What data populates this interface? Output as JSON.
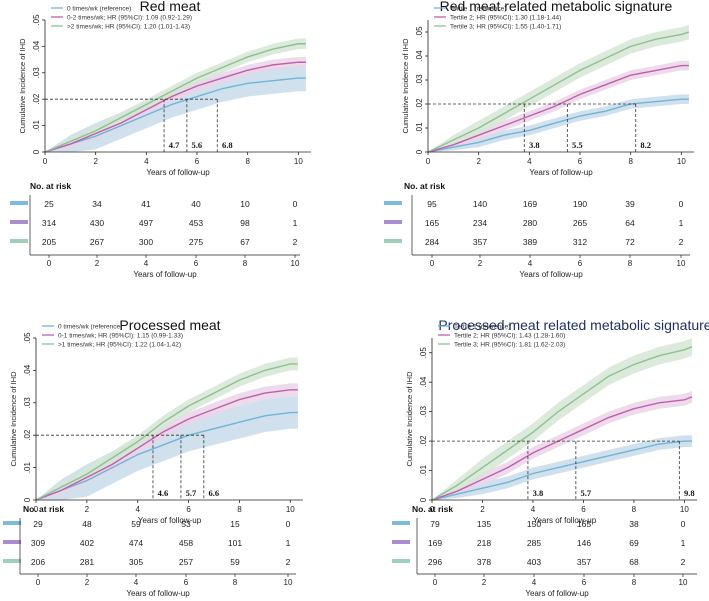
{
  "colors": {
    "blue": "#6fb5d6",
    "blue_ci": "#c9dbea",
    "purple": "#c05fae",
    "purple_ci": "#ead3e8",
    "green": "#8fbf95",
    "green_ci": "#d5e6d3",
    "axis": "#222222",
    "title_dark": "#1f2f63",
    "bar_blue": "#7cbcd8",
    "bar_purple": "#a88ed0",
    "bar_green": "#9ecfb8"
  },
  "chart_data": [
    {
      "id": "red-meat",
      "type": "line",
      "title": "Red meat",
      "title_style": "plain",
      "xlabel": "Years of follow-up",
      "ylabel": "Cumulative Incidence of IHD",
      "xlim": [
        0,
        10.5
      ],
      "ylim": [
        0,
        0.05
      ],
      "xticks": [
        "0",
        "2",
        "4",
        "6",
        "8",
        "10"
      ],
      "yticks": [
        "0",
        ".01",
        ".02",
        ".03",
        ".04",
        ".05"
      ],
      "series": [
        {
          "name": "0 times/wk (reference)",
          "color": "blue",
          "x": [
            0,
            1,
            2,
            3,
            4,
            5,
            6,
            7,
            8,
            9,
            10,
            10.3
          ],
          "y": [
            0,
            0.003,
            0.006,
            0.01,
            0.014,
            0.018,
            0.021,
            0.024,
            0.026,
            0.027,
            0.028,
            0.028
          ],
          "ci": 0.005
        },
        {
          "name": "0-2 times/wk; HR (95%CI): 1.09 (0.92-1.29)",
          "color": "purple",
          "x": [
            0,
            1,
            2,
            3,
            4,
            5,
            6,
            7,
            8,
            9,
            10,
            10.3
          ],
          "y": [
            0,
            0.003,
            0.007,
            0.011,
            0.016,
            0.021,
            0.025,
            0.028,
            0.031,
            0.033,
            0.034,
            0.034
          ],
          "ci": 0.002
        },
        {
          "name": ">2 times/wk; HR (95%CI): 1.20 (1.01-1.43)",
          "color": "green",
          "x": [
            0,
            1,
            2,
            3,
            4,
            5,
            6,
            7,
            8,
            9,
            10,
            10.3
          ],
          "y": [
            0,
            0.004,
            0.008,
            0.013,
            0.018,
            0.023,
            0.028,
            0.032,
            0.036,
            0.039,
            0.041,
            0.041
          ],
          "ci": 0.002
        }
      ],
      "ref_y": 0.02,
      "crossings": [
        {
          "x": 4.7,
          "label": "4.7"
        },
        {
          "x": 5.6,
          "label": "5.6"
        },
        {
          "x": 6.8,
          "label": "6.8"
        }
      ],
      "risk_table": {
        "title": "No. at risk",
        "xlabel": "Years of follow-up",
        "rows": [
          [
            "25",
            "34",
            "41",
            "40",
            "10",
            "0"
          ],
          [
            "314",
            "430",
            "497",
            "453",
            "98",
            "1"
          ],
          [
            "205",
            "267",
            "300",
            "275",
            "67",
            "2"
          ]
        ]
      }
    },
    {
      "id": "red-meat-signature",
      "type": "line",
      "title": "Red meat related metabolic signature",
      "title_style": "plain",
      "xlabel": "Years of follow-up",
      "ylabel": "Cumulative Incidence of IHD",
      "xlim": [
        0,
        10.5
      ],
      "ylim": [
        0,
        0.055
      ],
      "xticks": [
        "0",
        "2",
        "4",
        "6",
        "8",
        "10"
      ],
      "yticks": [
        "0",
        ".01",
        ".02",
        ".03",
        ".04",
        ".05"
      ],
      "series": [
        {
          "name": "Tertile 1 (reference)",
          "color": "blue",
          "x": [
            0,
            1,
            2,
            3,
            4,
            5,
            6,
            7,
            8,
            9,
            10,
            10.3
          ],
          "y": [
            0,
            0.002,
            0.004,
            0.007,
            0.009,
            0.012,
            0.015,
            0.017,
            0.02,
            0.021,
            0.022,
            0.022
          ],
          "ci": 0.002
        },
        {
          "name": "Tertile 2; HR (95%CI): 1.30 (1.18-1.44)",
          "color": "purple",
          "x": [
            0,
            1,
            2,
            3,
            4,
            5,
            6,
            7,
            8,
            9,
            10,
            10.3
          ],
          "y": [
            0,
            0.003,
            0.007,
            0.011,
            0.015,
            0.019,
            0.024,
            0.028,
            0.032,
            0.034,
            0.036,
            0.036
          ],
          "ci": 0.002
        },
        {
          "name": "Tertile 3; HR (95%CI): 1.55 (1.40-1.71)",
          "color": "green",
          "x": [
            0,
            1,
            2,
            3,
            4,
            5,
            6,
            7,
            8,
            9,
            10,
            10.3
          ],
          "y": [
            0,
            0.005,
            0.01,
            0.016,
            0.022,
            0.028,
            0.034,
            0.039,
            0.044,
            0.047,
            0.049,
            0.05
          ],
          "ci": 0.003
        }
      ],
      "ref_y": 0.02,
      "crossings": [
        {
          "x": 3.8,
          "label": "3.8"
        },
        {
          "x": 5.5,
          "label": "5.5"
        },
        {
          "x": 8.2,
          "label": "8.2"
        }
      ],
      "risk_table": {
        "title": "No. at risk",
        "xlabel": "Years of follow-up",
        "rows": [
          [
            "95",
            "140",
            "169",
            "190",
            "39",
            "0"
          ],
          [
            "165",
            "234",
            "280",
            "265",
            "64",
            "1"
          ],
          [
            "284",
            "357",
            "389",
            "312",
            "72",
            "2"
          ]
        ]
      }
    },
    {
      "id": "processed-meat",
      "type": "line",
      "title": "Processed meat",
      "title_style": "plain",
      "xlabel": "Years of follow-up",
      "ylabel": "Cumulative Incidence of IHD",
      "xlim": [
        0,
        10.5
      ],
      "ylim": [
        0,
        0.05
      ],
      "xticks": [
        "0",
        "2",
        "4",
        "6",
        "8",
        "10"
      ],
      "yticks": [
        "0",
        ".01",
        ".02",
        ".03",
        ".04",
        ".05"
      ],
      "series": [
        {
          "name": "0 times/wk (reference)",
          "color": "blue",
          "x": [
            0,
            1,
            2,
            3,
            4,
            5,
            6,
            7,
            8,
            9,
            10,
            10.3
          ],
          "y": [
            0,
            0.003,
            0.006,
            0.01,
            0.014,
            0.017,
            0.02,
            0.022,
            0.024,
            0.026,
            0.027,
            0.027
          ],
          "ci": 0.005
        },
        {
          "name": "0-1 times/wk; HR (95%CI): 1.15 (0.99-1.33)",
          "color": "purple",
          "x": [
            0,
            1,
            2,
            3,
            4,
            5,
            6,
            7,
            8,
            9,
            10,
            10.3
          ],
          "y": [
            0,
            0.003,
            0.007,
            0.011,
            0.016,
            0.021,
            0.025,
            0.028,
            0.031,
            0.033,
            0.034,
            0.034
          ],
          "ci": 0.002
        },
        {
          "name": ">1 times/wk; HR (95%CI): 1.22 (1.04-1.42)",
          "color": "green",
          "x": [
            0,
            1,
            2,
            3,
            4,
            5,
            6,
            7,
            8,
            9,
            10,
            10.3
          ],
          "y": [
            0,
            0.004,
            0.008,
            0.013,
            0.018,
            0.024,
            0.029,
            0.033,
            0.037,
            0.04,
            0.042,
            0.042
          ],
          "ci": 0.002
        }
      ],
      "ref_y": 0.02,
      "crossings": [
        {
          "x": 4.6,
          "label": "4.6"
        },
        {
          "x": 5.7,
          "label": "5.7"
        },
        {
          "x": 6.6,
          "label": "6.6"
        }
      ],
      "risk_table": {
        "title": "No. at risk",
        "xlabel": "Years of follow-up",
        "rows": [
          [
            "29",
            "48",
            "59",
            "53",
            "15",
            "0"
          ],
          [
            "309",
            "402",
            "474",
            "458",
            "101",
            "1"
          ],
          [
            "206",
            "281",
            "305",
            "257",
            "59",
            "2"
          ]
        ]
      }
    },
    {
      "id": "processed-meat-signature",
      "type": "line",
      "title": "Processed meat related metabolic signature",
      "title_style": "dark",
      "xlabel": "Years of follow-up",
      "ylabel": "Cumulative Incidence of IHD",
      "xlim": [
        0,
        10.5
      ],
      "ylim": [
        0,
        0.055
      ],
      "xticks": [
        "0",
        "2",
        "4",
        "6",
        "8",
        "10"
      ],
      "yticks": [
        "0",
        ".01",
        ".02",
        ".03",
        ".04",
        ".05"
      ],
      "series": [
        {
          "name": "Tertile 1 (reference)",
          "color": "blue",
          "x": [
            0,
            1,
            2,
            3,
            4,
            5,
            6,
            7,
            8,
            9,
            10,
            10.3
          ],
          "y": [
            0,
            0.002,
            0.004,
            0.006,
            0.009,
            0.011,
            0.013,
            0.015,
            0.017,
            0.019,
            0.02,
            0.02
          ],
          "ci": 0.002
        },
        {
          "name": "Tertile 2; HR (95%CI): 1.43 (1.28-1.60)",
          "color": "purple",
          "x": [
            0,
            1,
            2,
            3,
            4,
            5,
            6,
            7,
            8,
            9,
            10,
            10.3
          ],
          "y": [
            0,
            0.003,
            0.007,
            0.011,
            0.016,
            0.02,
            0.024,
            0.028,
            0.031,
            0.033,
            0.034,
            0.035
          ],
          "ci": 0.002
        },
        {
          "name": "Tertile 3; HR (95%CI): 1.81 (1.62-2.03)",
          "color": "green",
          "x": [
            0,
            1,
            2,
            3,
            4,
            5,
            6,
            7,
            8,
            9,
            10,
            10.3
          ],
          "y": [
            0,
            0.005,
            0.011,
            0.017,
            0.023,
            0.03,
            0.036,
            0.042,
            0.046,
            0.049,
            0.051,
            0.052
          ],
          "ci": 0.003
        }
      ],
      "ref_y": 0.02,
      "crossings": [
        {
          "x": 3.8,
          "label": "3.8"
        },
        {
          "x": 5.7,
          "label": "5.7"
        },
        {
          "x": 9.8,
          "label": "9.8"
        }
      ],
      "risk_table": {
        "title": "No. at risk",
        "xlabel": "Years of follow-up",
        "rows": [
          [
            "79",
            "135",
            "150",
            "165",
            "38",
            "0"
          ],
          [
            "169",
            "218",
            "285",
            "146",
            "69",
            "1"
          ],
          [
            "296",
            "378",
            "403",
            "357",
            "68",
            "2"
          ]
        ]
      }
    }
  ]
}
